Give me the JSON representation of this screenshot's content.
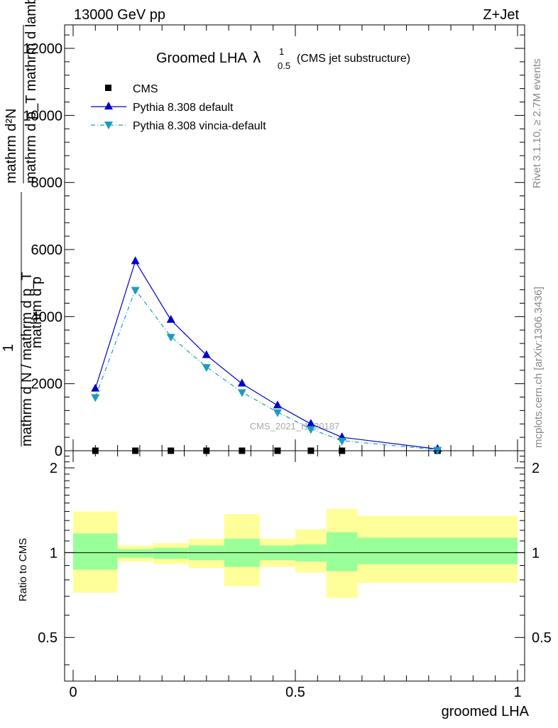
{
  "header": {
    "energy": "13000 GeV pp",
    "process": "Z+Jet"
  },
  "side_text": {
    "rivet": "Rivet 3.1.10, ≥ 2.7M events",
    "mcplots": "mcplots.cern.ch [arXiv:1306.3436]"
  },
  "chart_data": [
    {
      "type": "line",
      "title": "Groomed LHA",
      "title_symbol": "λ",
      "title_sup": "1",
      "title_sub": "0.5",
      "subtitle": "(CMS jet substructure)",
      "ylabel_num": "mathrm d²N",
      "ylabel_den": "mathrm d p_T mathrm d lambda",
      "ylabel_prefix": "1",
      "ylabel_main": "mathrm d N / mathrm d p_T",
      "ylabel_corner": "mathrm d p",
      "ylim": [
        0,
        12700
      ],
      "yticks": [
        0,
        2000,
        4000,
        6000,
        8000,
        10000,
        12000
      ],
      "ytick_labels": [
        "0",
        "2000",
        "4000",
        "6000",
        "8000",
        "10000",
        "12000"
      ],
      "watermark": "CMS_2021_I1920187",
      "legend_position": "top-left",
      "series": [
        {
          "name": "CMS",
          "color": "#000000",
          "marker": "square",
          "x": [
            0.05,
            0.14,
            0.22,
            0.3,
            0.38,
            0.46,
            0.535,
            0.605,
            0.82
          ],
          "y": [
            0,
            0,
            0,
            0,
            0,
            0,
            0,
            0,
            0
          ]
        },
        {
          "name": "Pythia 8.308 default",
          "color": "#0000cc",
          "marker": "triangle-up",
          "line": "solid",
          "x": [
            0.05,
            0.14,
            0.22,
            0.3,
            0.38,
            0.46,
            0.535,
            0.605,
            0.82
          ],
          "y": [
            1850,
            5650,
            3900,
            2850,
            2000,
            1350,
            800,
            400,
            50
          ]
        },
        {
          "name": "Pythia 8.308 vincia-default",
          "color": "#1b9cbf",
          "marker": "triangle-down",
          "line": "dashdot",
          "x": [
            0.05,
            0.14,
            0.22,
            0.3,
            0.38,
            0.46,
            0.535,
            0.605,
            0.82
          ],
          "y": [
            1600,
            4800,
            3400,
            2500,
            1750,
            1150,
            650,
            300,
            30
          ]
        }
      ]
    },
    {
      "type": "area",
      "ylabel": "Ratio to CMS",
      "xlabel": "groomed LHA",
      "xlim": [
        0,
        1
      ],
      "ylim": [
        0.35,
        2.3
      ],
      "xticks": [
        0,
        0.5,
        1
      ],
      "xtick_labels": [
        "0",
        "0.5",
        "1"
      ],
      "yticks": [
        0.5,
        1,
        2
      ],
      "ytick_labels": [
        "0.5",
        "1",
        "2"
      ],
      "reference_line": 1,
      "bands": {
        "x_edges": [
          0.0,
          0.1,
          0.18,
          0.26,
          0.34,
          0.42,
          0.5,
          0.57,
          0.64,
          1.0
        ],
        "inner_color": "#99ff99",
        "outer_color": "#ffff99",
        "inner_low": [
          0.87,
          0.96,
          0.95,
          0.94,
          0.89,
          0.94,
          0.93,
          0.86,
          0.91
        ],
        "inner_high": [
          1.17,
          1.03,
          1.04,
          1.06,
          1.12,
          1.06,
          1.07,
          1.18,
          1.13
        ],
        "outer_low": [
          0.72,
          0.93,
          0.91,
          0.88,
          0.76,
          0.89,
          0.85,
          0.69,
          0.78
        ],
        "outer_high": [
          1.4,
          1.06,
          1.08,
          1.12,
          1.37,
          1.12,
          1.21,
          1.43,
          1.35
        ]
      }
    }
  ]
}
